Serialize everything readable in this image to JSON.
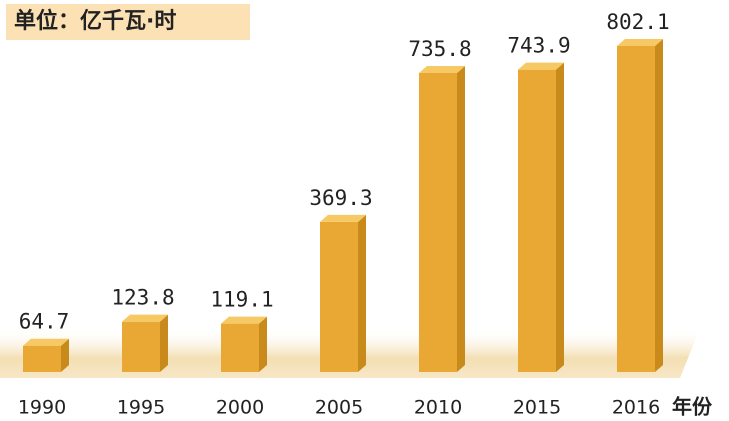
{
  "chart_data": {
    "type": "bar",
    "title": "单位：亿千瓦·时",
    "x_label": "年份",
    "categories": [
      "1990",
      "1995",
      "2000",
      "2005",
      "2010",
      "2015",
      "2016"
    ],
    "values": [
      64.7,
      123.8,
      119.1,
      369.3,
      735.8,
      743.9,
      802.1
    ],
    "color": "#e9a834"
  }
}
